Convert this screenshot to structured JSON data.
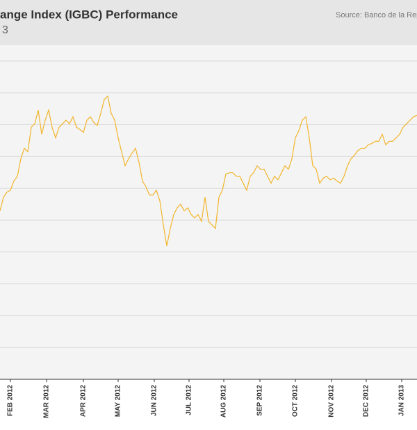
{
  "chart_data": {
    "type": "line",
    "title": "ange Index (IGBC) Performance",
    "subtitle": "3",
    "source": "Source: Banco de la Rep",
    "color": "#f2b52b",
    "grid": true,
    "xlim": [
      0,
      120
    ],
    "xticks": [
      {
        "value": 3,
        "label": "FEB 2012"
      },
      {
        "value": 13.4,
        "label": "MAR 2012"
      },
      {
        "value": 24,
        "label": "APR 2012"
      },
      {
        "value": 34,
        "label": "MAY 2012"
      },
      {
        "value": 44.4,
        "label": "JUN 2012"
      },
      {
        "value": 54.4,
        "label": "JUL 2012"
      },
      {
        "value": 64.4,
        "label": "AUG 2012"
      },
      {
        "value": 74.8,
        "label": "SEP 2012"
      },
      {
        "value": 85,
        "label": "OCT 2012"
      },
      {
        "value": 95.4,
        "label": "NOV 2012"
      },
      {
        "value": 105.4,
        "label": "DEC 2012"
      },
      {
        "value": 115.6,
        "label": "JAN 2013"
      }
    ],
    "ylim": [
      0,
      10.5
    ],
    "yticks": [
      0,
      1,
      2,
      3,
      4,
      5,
      6,
      7,
      8,
      9,
      10
    ],
    "values": [
      5.29,
      5.72,
      5.88,
      5.94,
      6.23,
      6.38,
      6.93,
      7.26,
      7.15,
      7.92,
      8.03,
      8.46,
      7.7,
      8.14,
      8.46,
      7.92,
      7.59,
      7.92,
      8.03,
      8.14,
      8.03,
      8.25,
      7.92,
      7.85,
      7.76,
      8.14,
      8.25,
      8.07,
      7.98,
      8.36,
      8.79,
      8.9,
      8.36,
      8.14,
      7.59,
      7.15,
      6.71,
      6.93,
      7.11,
      7.26,
      6.82,
      6.23,
      6.05,
      5.79,
      5.79,
      5.94,
      5.61,
      4.85,
      4.19,
      4.74,
      5.18,
      5.39,
      5.5,
      5.29,
      5.39,
      5.18,
      5.07,
      5.18,
      4.96,
      5.72,
      4.96,
      4.85,
      4.74,
      5.72,
      5.94,
      6.45,
      6.49,
      6.49,
      6.38,
      6.38,
      6.16,
      5.94,
      6.38,
      6.49,
      6.71,
      6.6,
      6.6,
      6.38,
      6.16,
      6.38,
      6.27,
      6.49,
      6.71,
      6.6,
      6.93,
      7.59,
      7.81,
      8.14,
      8.25,
      7.59,
      6.71,
      6.6,
      6.16,
      6.32,
      6.38,
      6.27,
      6.32,
      6.23,
      6.16,
      6.38,
      6.71,
      6.93,
      7.04,
      7.19,
      7.26,
      7.26,
      7.37,
      7.41,
      7.48,
      7.48,
      7.7,
      7.37,
      7.48,
      7.48,
      7.59,
      7.7,
      7.92,
      8.03,
      8.14,
      8.25,
      8.29
    ]
  }
}
